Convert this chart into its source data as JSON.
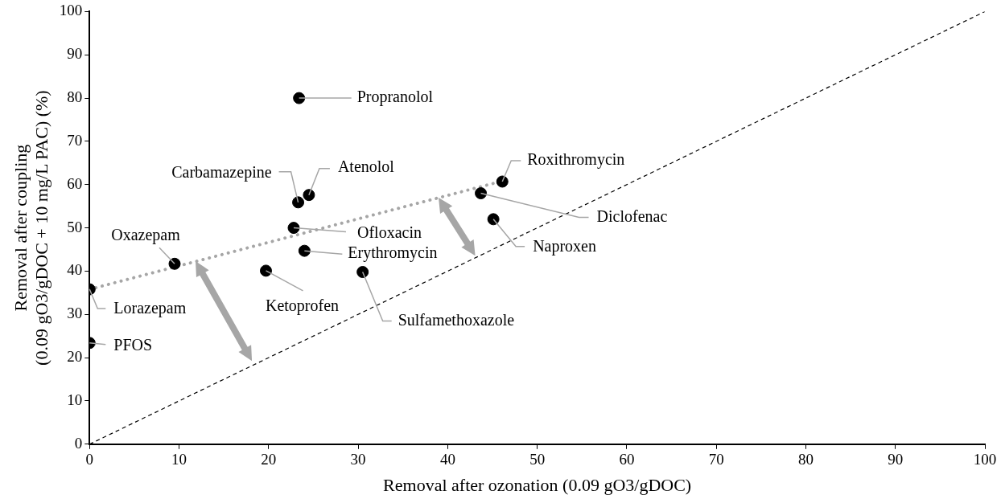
{
  "chart_data": {
    "type": "scatter",
    "xlabel": "Removal after ozonation (0.09 gO3/gDOC)",
    "ylabel": "Removal after coupling\n(0.09 gO3/gDOC + 10 mg/L PAC) (%)",
    "xlim": [
      0,
      100
    ],
    "xticks": [
      0,
      10,
      20,
      30,
      40,
      50,
      60,
      70,
      80,
      90,
      100
    ],
    "ylim": [
      0,
      100
    ],
    "yticks": [
      0,
      10,
      20,
      30,
      40,
      50,
      60,
      70,
      80,
      90,
      100
    ],
    "grid": false,
    "legend": false,
    "marker": "circle",
    "series": [
      {
        "name": "Propranolol",
        "color": "#000000",
        "x": [
          23.4
        ],
        "values": [
          80
        ]
      },
      {
        "name": "Carbamazepine",
        "color": "#000000",
        "x": [
          23.3
        ],
        "values": [
          55.9
        ]
      },
      {
        "name": "Atenolol",
        "color": "#000000",
        "x": [
          24.5
        ],
        "values": [
          57.6
        ]
      },
      {
        "name": "Ofloxacin",
        "color": "#000000",
        "x": [
          22.8
        ],
        "values": [
          50
        ]
      },
      {
        "name": "Erythromycin",
        "color": "#000000",
        "x": [
          24
        ],
        "values": [
          44.7
        ]
      },
      {
        "name": "Ketoprofen",
        "color": "#000000",
        "x": [
          19.7
        ],
        "values": [
          40.1
        ]
      },
      {
        "name": "Sulfamethoxazole",
        "color": "#000000",
        "x": [
          30.5
        ],
        "values": [
          39.8
        ]
      },
      {
        "name": "Oxazepam",
        "color": "#000000",
        "x": [
          9.5
        ],
        "values": [
          41.7
        ]
      },
      {
        "name": "Lorazepam",
        "color": "#000000",
        "x": [
          0
        ],
        "values": [
          35.8
        ]
      },
      {
        "name": "PFOS",
        "color": "#000000",
        "x": [
          0
        ],
        "values": [
          23.4
        ]
      },
      {
        "name": "Roxithromycin",
        "color": "#000000",
        "x": [
          46.1
        ],
        "values": [
          60.7
        ]
      },
      {
        "name": "Diclofenac",
        "color": "#000000",
        "x": [
          43.7
        ],
        "values": [
          58
        ]
      },
      {
        "name": "Naproxen",
        "color": "#000000",
        "x": [
          45.1
        ],
        "values": [
          52
        ]
      },
      {
        "type": "line",
        "color": "#a6a6a6",
        "x": [
          0,
          45.5
        ],
        "values": [
          35.8,
          60.5
        ],
        "line_style": "dotted",
        "marker": "none"
      },
      {
        "type": "line",
        "color": "#000000",
        "x": [
          0,
          100
        ],
        "values": [
          0,
          100
        ],
        "line_style": "dashed",
        "marker": "none"
      }
    ]
  }
}
